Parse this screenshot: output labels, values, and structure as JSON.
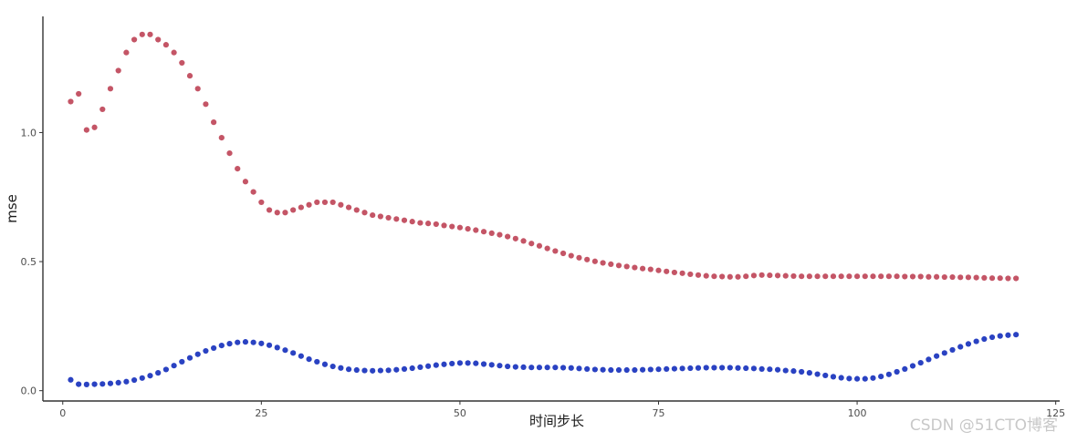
{
  "chart_data": {
    "type": "scatter",
    "title": "",
    "xlabel": "时间步长",
    "ylabel": "mse",
    "xlim": [
      -2.5,
      125.5
    ],
    "ylim": [
      -0.04,
      1.45
    ],
    "x_ticks": [
      0,
      25,
      50,
      75,
      100,
      125
    ],
    "y_ticks": [
      0.0,
      0.5,
      1.0
    ],
    "x_tick_labels": [
      "0",
      "25",
      "50",
      "75",
      "100",
      "125"
    ],
    "y_tick_labels": [
      "0.0",
      "0.5",
      "1.0"
    ],
    "grid": false,
    "legend": "none",
    "series": [
      {
        "color": "#c45566",
        "x": [
          1,
          2,
          3,
          4,
          5,
          6,
          7,
          8,
          9,
          10,
          11,
          12,
          13,
          14,
          15,
          16,
          17,
          18,
          19,
          20,
          21,
          22,
          23,
          24,
          25,
          26,
          27,
          28,
          29,
          30,
          31,
          32,
          33,
          34,
          35,
          36,
          37,
          38,
          39,
          40,
          41,
          42,
          43,
          44,
          45,
          46,
          47,
          48,
          49,
          50,
          51,
          52,
          53,
          54,
          55,
          56,
          57,
          58,
          59,
          60,
          61,
          62,
          63,
          64,
          65,
          66,
          67,
          68,
          69,
          70,
          71,
          72,
          73,
          74,
          75,
          76,
          77,
          78,
          79,
          80,
          81,
          82,
          83,
          84,
          85,
          86,
          87,
          88,
          89,
          90,
          91,
          92,
          93,
          94,
          95,
          96,
          97,
          98,
          99,
          100,
          101,
          102,
          103,
          104,
          105,
          106,
          107,
          108,
          109,
          110,
          111,
          112,
          113,
          114,
          115,
          116,
          117,
          118,
          119,
          120
        ],
        "values": [
          1.12,
          1.15,
          1.01,
          1.02,
          1.09,
          1.17,
          1.24,
          1.31,
          1.36,
          1.38,
          1.38,
          1.36,
          1.34,
          1.31,
          1.27,
          1.22,
          1.17,
          1.11,
          1.04,
          0.98,
          0.92,
          0.86,
          0.81,
          0.77,
          0.73,
          0.7,
          0.69,
          0.69,
          0.7,
          0.71,
          0.72,
          0.73,
          0.73,
          0.73,
          0.72,
          0.71,
          0.7,
          0.69,
          0.68,
          0.675,
          0.67,
          0.665,
          0.66,
          0.655,
          0.65,
          0.648,
          0.645,
          0.64,
          0.636,
          0.632,
          0.627,
          0.622,
          0.616,
          0.61,
          0.604,
          0.597,
          0.589,
          0.58,
          0.57,
          0.561,
          0.551,
          0.541,
          0.532,
          0.523,
          0.515,
          0.508,
          0.501,
          0.495,
          0.49,
          0.485,
          0.481,
          0.477,
          0.473,
          0.47,
          0.466,
          0.462,
          0.458,
          0.455,
          0.451,
          0.448,
          0.445,
          0.443,
          0.442,
          0.441,
          0.441,
          0.443,
          0.446,
          0.448,
          0.447,
          0.446,
          0.445,
          0.444,
          0.443,
          0.443,
          0.443,
          0.443,
          0.443,
          0.443,
          0.443,
          0.443,
          0.443,
          0.443,
          0.443,
          0.443,
          0.443,
          0.442,
          0.442,
          0.442,
          0.441,
          0.441,
          0.44,
          0.44,
          0.439,
          0.439,
          0.438,
          0.437,
          0.436,
          0.436,
          0.435,
          0.435
        ]
      },
      {
        "color": "#2a42c2",
        "x": [
          1,
          2,
          3,
          4,
          5,
          6,
          7,
          8,
          9,
          10,
          11,
          12,
          13,
          14,
          15,
          16,
          17,
          18,
          19,
          20,
          21,
          22,
          23,
          24,
          25,
          26,
          27,
          28,
          29,
          30,
          31,
          32,
          33,
          34,
          35,
          36,
          37,
          38,
          39,
          40,
          41,
          42,
          43,
          44,
          45,
          46,
          47,
          48,
          49,
          50,
          51,
          52,
          53,
          54,
          55,
          56,
          57,
          58,
          59,
          60,
          61,
          62,
          63,
          64,
          65,
          66,
          67,
          68,
          69,
          70,
          71,
          72,
          73,
          74,
          75,
          76,
          77,
          78,
          79,
          80,
          81,
          82,
          83,
          84,
          85,
          86,
          87,
          88,
          89,
          90,
          91,
          92,
          93,
          94,
          95,
          96,
          97,
          98,
          99,
          100,
          101,
          102,
          103,
          104,
          105,
          106,
          107,
          108,
          109,
          110,
          111,
          112,
          113,
          114,
          115,
          116,
          117,
          118,
          119,
          120
        ],
        "values": [
          0.042,
          0.025,
          0.024,
          0.025,
          0.026,
          0.028,
          0.031,
          0.035,
          0.041,
          0.049,
          0.058,
          0.069,
          0.082,
          0.097,
          0.112,
          0.127,
          0.141,
          0.154,
          0.165,
          0.175,
          0.182,
          0.187,
          0.189,
          0.187,
          0.183,
          0.176,
          0.167,
          0.157,
          0.146,
          0.134,
          0.122,
          0.112,
          0.102,
          0.094,
          0.088,
          0.083,
          0.08,
          0.078,
          0.077,
          0.078,
          0.079,
          0.081,
          0.084,
          0.087,
          0.091,
          0.095,
          0.099,
          0.102,
          0.105,
          0.107,
          0.107,
          0.106,
          0.103,
          0.1,
          0.097,
          0.094,
          0.092,
          0.091,
          0.09,
          0.09,
          0.09,
          0.09,
          0.089,
          0.088,
          0.086,
          0.084,
          0.082,
          0.081,
          0.08,
          0.08,
          0.08,
          0.08,
          0.081,
          0.082,
          0.083,
          0.084,
          0.085,
          0.086,
          0.087,
          0.088,
          0.089,
          0.089,
          0.089,
          0.089,
          0.088,
          0.087,
          0.086,
          0.084,
          0.083,
          0.081,
          0.078,
          0.076,
          0.073,
          0.069,
          0.064,
          0.059,
          0.054,
          0.05,
          0.047,
          0.046,
          0.046,
          0.049,
          0.055,
          0.063,
          0.073,
          0.084,
          0.096,
          0.108,
          0.121,
          0.134,
          0.146,
          0.158,
          0.17,
          0.181,
          0.191,
          0.2,
          0.207,
          0.212,
          0.215,
          0.217
        ]
      }
    ]
  },
  "watermark": "CSDN @51CTO博客"
}
